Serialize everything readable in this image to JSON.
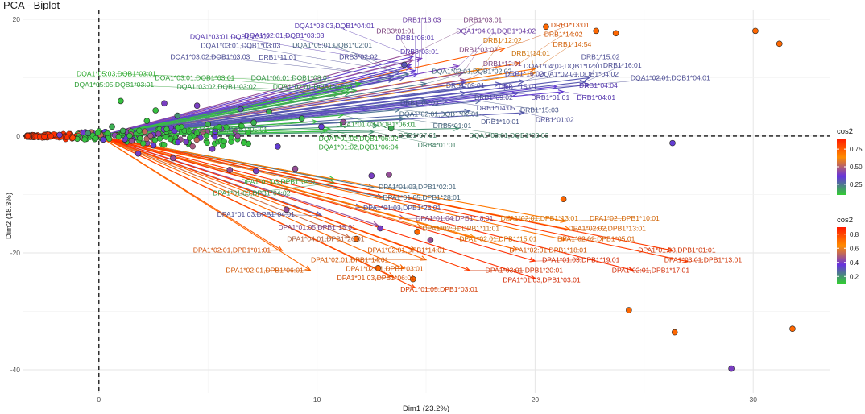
{
  "chart_data": {
    "type": "scatter",
    "title": "PCA - Biplot",
    "xlabel": "Dim1 (23.2%)",
    "ylabel": "Dim2 (18.3%)",
    "xlim": [
      -3.5,
      33.5
    ],
    "ylim": [
      -44,
      21.5
    ],
    "xticks": [
      0,
      10,
      20,
      30
    ],
    "yticks": [
      20,
      0,
      -20,
      -40
    ],
    "reference_lines": {
      "x": 0,
      "y": 0,
      "style": "dashed"
    },
    "legends": [
      {
        "title": "cos2",
        "kind": "gradient",
        "colors": [
          "#32CD32",
          "#6633DD",
          "#FF8C00",
          "#FF1A00"
        ],
        "range": [
          0.1,
          0.9
        ],
        "ticks": [
          0.25,
          0.5,
          0.75
        ],
        "tick_labels": [
          "0.25",
          "0.50",
          "0.75"
        ],
        "applies_to": "DQ/DR variables"
      },
      {
        "title": "cos2",
        "kind": "gradient",
        "colors": [
          "#32CD32",
          "#6633DD",
          "#FF8C00",
          "#FF1A00"
        ],
        "range": [
          0.1,
          0.9
        ],
        "ticks": [
          0.2,
          0.4,
          0.6,
          0.8
        ],
        "tick_labels": [
          "0.2",
          "0.4",
          "0.6",
          "0.8"
        ],
        "applies_to": "DP variables"
      }
    ],
    "variables": [
      {
        "label": "DRB1*13:03",
        "x": 14.8,
        "y": 13.3,
        "cos2": 0.4,
        "tx": 14.8,
        "ty": 19.9
      },
      {
        "label": "DRB1*03:01",
        "x": 14.5,
        "y": 14.3,
        "cos2": 0.45,
        "tx": 17.6,
        "ty": 19.9
      },
      {
        "label": "DRB1*13:01",
        "x": 18.6,
        "y": 15.0,
        "cos2": 0.75,
        "tx": 21.6,
        "ty": 19.0
      },
      {
        "label": "DQA1*03:03,DQB1*04:01",
        "x": 14.4,
        "y": 13.6,
        "cos2": 0.35,
        "tx": 10.8,
        "ty": 18.9
      },
      {
        "label": "DRB3*01:01",
        "x": 14.4,
        "y": 13.0,
        "cos2": 0.45,
        "tx": 13.6,
        "ty": 18.0
      },
      {
        "label": "DQA1*04:01,DQB1*04:02",
        "x": 16.5,
        "y": 12.0,
        "cos2": 0.4,
        "tx": 18.2,
        "ty": 18.0
      },
      {
        "label": "DRB1*14:02",
        "x": 19.3,
        "y": 12.5,
        "cos2": 0.72,
        "tx": 21.3,
        "ty": 17.4
      },
      {
        "label": "DQA1*03:01,DQB1*03:02",
        "x": 14.3,
        "y": 12.2,
        "cos2": 0.35,
        "tx": 6.0,
        "ty": 17.0
      },
      {
        "label": "DQA1*02:01,DQB1*03:03",
        "x": 14.3,
        "y": 11.8,
        "cos2": 0.35,
        "tx": 8.5,
        "ty": 17.2
      },
      {
        "label": "DRB1*08:01",
        "x": 14.5,
        "y": 11.2,
        "cos2": 0.35,
        "tx": 14.5,
        "ty": 16.8
      },
      {
        "label": "DRB1*12:02",
        "x": 17.5,
        "y": 11.4,
        "cos2": 0.65,
        "tx": 18.5,
        "ty": 16.4
      },
      {
        "label": "DRB1*14:54",
        "x": 20.0,
        "y": 11.5,
        "cos2": 0.7,
        "tx": 21.7,
        "ty": 15.7
      },
      {
        "label": "DQA1*03:01,DQB1*03:03",
        "x": 13.8,
        "y": 11.0,
        "cos2": 0.3,
        "tx": 6.5,
        "ty": 15.5
      },
      {
        "label": "DQA1*05:01,DQB1*02:01",
        "x": 14.2,
        "y": 10.6,
        "cos2": 0.25,
        "tx": 10.7,
        "ty": 15.6
      },
      {
        "label": "DRB3*03:01",
        "x": 14.6,
        "y": 10.6,
        "cos2": 0.35,
        "tx": 14.7,
        "ty": 14.5
      },
      {
        "label": "DRB1*03:02",
        "x": 16.7,
        "y": 10.8,
        "cos2": 0.45,
        "tx": 17.4,
        "ty": 14.8
      },
      {
        "label": "DQA1*03:02,DQB1*03:03",
        "x": 13.5,
        "y": 10.3,
        "cos2": 0.3,
        "tx": 5.1,
        "ty": 13.6
      },
      {
        "label": "DRB1*11:01",
        "x": 13.5,
        "y": 9.7,
        "cos2": 0.3,
        "tx": 8.2,
        "ty": 13.5
      },
      {
        "label": "DRB3*02:02",
        "x": 14.0,
        "y": 10.0,
        "cos2": 0.3,
        "tx": 11.9,
        "ty": 13.6
      },
      {
        "label": "DRB1*14:01",
        "x": 20.0,
        "y": 10.8,
        "cos2": 0.62,
        "tx": 19.8,
        "ty": 14.2
      },
      {
        "label": "DRB1*15:02",
        "x": 22.5,
        "y": 10.0,
        "cos2": 0.3,
        "tx": 23.0,
        "ty": 13.6
      },
      {
        "label": "DQA1*05:03,DQB1*03:01",
        "x": 12.0,
        "y": 9.0,
        "cos2": 0.1,
        "tx": 0.8,
        "ty": 10.7
      },
      {
        "label": "DRB1*12:01",
        "x": 16.8,
        "y": 9.6,
        "cos2": 0.45,
        "tx": 18.5,
        "ty": 12.4
      },
      {
        "label": "DQA1*04:01,DQB1*02:01",
        "x": 19.5,
        "y": 9.4,
        "cos2": 0.3,
        "tx": 21.3,
        "ty": 12.0
      },
      {
        "label": "DRB1*16:01",
        "x": 22.3,
        "y": 9.3,
        "cos2": 0.3,
        "tx": 24.0,
        "ty": 12.1
      },
      {
        "label": "DQA1*02:01,DQB1*02:02",
        "x": 15.0,
        "y": 9.0,
        "cos2": 0.25,
        "tx": 17.1,
        "ty": 11.1
      },
      {
        "label": "DRB1*16:02",
        "x": 16.8,
        "y": 9.2,
        "cos2": 0.32,
        "tx": 19.5,
        "ty": 10.7
      },
      {
        "label": "DQA1*02:01,DQB1*04:02",
        "x": 18.4,
        "y": 9.0,
        "cos2": 0.3,
        "tx": 22.0,
        "ty": 10.6
      },
      {
        "label": "DQA1*02:01,DQB1*04:01",
        "x": 22.5,
        "y": 8.8,
        "cos2": 0.3,
        "tx": 26.2,
        "ty": 10.0
      },
      {
        "label": "DQA1*03:01,DQB1*03:01",
        "x": 11.5,
        "y": 8.0,
        "cos2": 0.12,
        "tx": 4.4,
        "ty": 10.0
      },
      {
        "label": "DQA1*06:01,DQB1*03:01",
        "x": 11.8,
        "y": 7.8,
        "cos2": 0.15,
        "tx": 8.8,
        "ty": 10.0
      },
      {
        "label": "DQA1*05:05,DQB1*03:01",
        "x": 11.0,
        "y": 7.3,
        "cos2": 0.12,
        "tx": 0.7,
        "ty": 8.8
      },
      {
        "label": "DQA1*03:02,DQB1*03:02",
        "x": 11.3,
        "y": 7.5,
        "cos2": 0.15,
        "tx": 5.4,
        "ty": 8.5
      },
      {
        "label": "DQA1*02:01,DQB1*02:03",
        "x": 11.5,
        "y": 7.4,
        "cos2": 0.15,
        "tx": 9.8,
        "ty": 8.5
      },
      {
        "label": "DRB1*09:01",
        "x": 16.8,
        "y": 8.4,
        "cos2": 0.3,
        "tx": 16.8,
        "ty": 8.7
      },
      {
        "label": "DRB1*15:01",
        "x": 18.8,
        "y": 8.4,
        "cos2": 0.32,
        "tx": 19.2,
        "ty": 8.5
      },
      {
        "label": "DRB1*04:04",
        "x": 21.0,
        "y": 8.5,
        "cos2": 0.35,
        "tx": 22.9,
        "ty": 8.7
      },
      {
        "label": "DRB1*09:02",
        "x": 16.8,
        "y": 7.4,
        "cos2": 0.3,
        "tx": 18.1,
        "ty": 6.6
      },
      {
        "label": "DRB1*01:01",
        "x": 19.2,
        "y": 7.3,
        "cos2": 0.33,
        "tx": 20.7,
        "ty": 6.6
      },
      {
        "label": "DRB1*04:01",
        "x": 21.3,
        "y": 7.6,
        "cos2": 0.35,
        "tx": 22.8,
        "ty": 6.6
      },
      {
        "label": "DRB1*04:03",
        "x": 15.0,
        "y": 6.2,
        "cos2": 0.28,
        "tx": 14.7,
        "ty": 5.7
      },
      {
        "label": "DRB1*04:05",
        "x": 16.0,
        "y": 6.0,
        "cos2": 0.3,
        "tx": 18.2,
        "ty": 4.8
      },
      {
        "label": "DRB1*15:03",
        "x": 17.5,
        "y": 6.0,
        "cos2": 0.28,
        "tx": 20.2,
        "ty": 4.5
      },
      {
        "label": "DQA1*02:01,DQB1*02:01",
        "x": 13.8,
        "y": 4.5,
        "cos2": 0.25,
        "tx": 15.6,
        "ty": 3.8
      },
      {
        "label": "DRB1*10:01",
        "x": 17.0,
        "y": 4.3,
        "cos2": 0.28,
        "tx": 18.4,
        "ty": 2.5
      },
      {
        "label": "DRB1*01:02",
        "x": 19.5,
        "y": 4.0,
        "cos2": 0.3,
        "tx": 20.9,
        "ty": 2.8
      },
      {
        "label": "DQA1*01:03,DQB1*06:01",
        "x": 11.2,
        "y": 3.6,
        "cos2": 0.14,
        "tx": 12.7,
        "ty": 2.0
      },
      {
        "label": "DRB5*01:01",
        "x": 14.0,
        "y": 3.0,
        "cos2": 0.25,
        "tx": 16.2,
        "ty": 1.8
      },
      {
        "label": "DQA1*01:01,DQB1*05:01",
        "x": 10.0,
        "y": 2.5,
        "cos2": 0.12,
        "tx": 5.9,
        "ty": 1.1
      },
      {
        "label": "DQA1*03:01,DQB1*03:03",
        "x": 16.5,
        "y": 1.3,
        "cos2": 0.2,
        "tx": 18.8,
        "ty": 0.1
      },
      {
        "label": "DRB1*07:01",
        "x": 12.8,
        "y": 1.8,
        "cos2": 0.2,
        "tx": 14.6,
        "ty": 0.1
      },
      {
        "label": "DQA1*01:02,DQB1*06:02",
        "x": 10.6,
        "y": 1.2,
        "cos2": 0.12,
        "tx": 11.9,
        "ty": -0.4
      },
      {
        "label": "DQA1*01:02,DQB1*06:04",
        "x": 10.4,
        "y": 0.8,
        "cos2": 0.12,
        "tx": 11.9,
        "ty": -1.9
      },
      {
        "label": "DRB4*01:01",
        "x": 12.6,
        "y": 0.7,
        "cos2": 0.2,
        "tx": 15.5,
        "ty": -1.5
      },
      {
        "label": "DPA1*01:03,DPB1*04:01",
        "x": 10.8,
        "y": -7.4,
        "cos2": 0.12,
        "tx": 8.3,
        "ty": -7.8
      },
      {
        "label": "DPA1*01:03,DPB1*04:02",
        "x": 10.8,
        "y": -8.0,
        "cos2": 0.15,
        "tx": 7.0,
        "ty": -9.7
      },
      {
        "label": "DPA1*01:03,DPB1*02:01",
        "x": 12.6,
        "y": -8.8,
        "cos2": 0.25,
        "tx": 14.6,
        "ty": -8.7
      },
      {
        "label": "DPA1*01:05,DPB1*28:01",
        "x": 13.0,
        "y": -10.5,
        "cos2": 0.25,
        "tx": 14.8,
        "ty": -10.5
      },
      {
        "label": "DPA1*01:03,DPB1*28:01",
        "x": 12.0,
        "y": -12.2,
        "cos2": 0.3,
        "tx": 13.9,
        "ty": -12.3
      },
      {
        "label": "DPA1*01:03,DPB1*04:01",
        "x": 10.2,
        "y": -13.6,
        "cos2": 0.3,
        "tx": 7.2,
        "ty": -13.4
      },
      {
        "label": "DPA1*01:04,DPB1*18:01",
        "x": 14.0,
        "y": -14.1,
        "cos2": 0.45,
        "tx": 16.3,
        "ty": -14.1
      },
      {
        "label": "DPA1*02:01,DPB1*13:01",
        "x": 19.0,
        "y": -14.2,
        "cos2": 0.65,
        "tx": 20.2,
        "ty": -14.1
      },
      {
        "label": "DPA1*02 ,DPB1*10:01",
        "x": 21.4,
        "y": -14.6,
        "cos2": 0.68,
        "tx": 24.1,
        "ty": -14.1
      },
      {
        "label": "DPA1*01:05,DPB1*15:01",
        "x": 12.8,
        "y": -15.3,
        "cos2": 0.45,
        "tx": 10.0,
        "ty": -15.6
      },
      {
        "label": "DPA1*02:01,DPB1*11:01",
        "x": 14.8,
        "y": -15.6,
        "cos2": 0.6,
        "tx": 16.6,
        "ty": -15.8
      },
      {
        "label": "DPA1*02:02,DPB1*13:01",
        "x": 21.6,
        "y": -16.0,
        "cos2": 0.7,
        "tx": 23.3,
        "ty": -15.8
      },
      {
        "label": "DPA1*04:01,DPB1*26:01",
        "x": 11.5,
        "y": -17.4,
        "cos2": 0.55,
        "tx": 10.4,
        "ty": -17.6
      },
      {
        "label": "DPA1*02:01,DPB1*15:01",
        "x": 17.2,
        "y": -17.3,
        "cos2": 0.65,
        "tx": 18.3,
        "ty": -17.6
      },
      {
        "label": "DPA1*02:02,DPB1*05:01",
        "x": 21.4,
        "y": -17.8,
        "cos2": 0.7,
        "tx": 22.8,
        "ty": -17.6
      },
      {
        "label": "DPA1*02:01,DPB1*01:01",
        "x": 8.4,
        "y": -19.6,
        "cos2": 0.75,
        "tx": 6.1,
        "ty": -19.5
      },
      {
        "label": "DPA1*02:01,DPB1*14:01",
        "x": 14.5,
        "y": -19.5,
        "cos2": 0.72,
        "tx": 14.1,
        "ty": -19.5
      },
      {
        "label": "DPA1*02:01,DPB1*18:01",
        "x": 19.2,
        "y": -19.5,
        "cos2": 0.72,
        "tx": 20.6,
        "ty": -19.5
      },
      {
        "label": "DPA1*01:03,DPB1*01:01",
        "x": 26.3,
        "y": -19.6,
        "cos2": 0.82,
        "tx": 26.5,
        "ty": -19.5
      },
      {
        "label": "DPA1*02:01,DPB1*14:01",
        "x": 15.0,
        "y": -21.2,
        "cos2": 0.72,
        "tx": 11.5,
        "ty": -21.2
      },
      {
        "label": "DPA1*01:03,DPB1*19:01",
        "x": 20.0,
        "y": -21.4,
        "cos2": 0.85,
        "tx": 22.1,
        "ty": -21.2
      },
      {
        "label": "DPA1*03:01,DPB1*13:01",
        "x": 27.0,
        "y": -21.5,
        "cos2": 0.82,
        "tx": 27.7,
        "ty": -21.2
      },
      {
        "label": "DPA1*02:01,DPB1*06:01",
        "x": 9.7,
        "y": -23.0,
        "cos2": 0.72,
        "tx": 7.6,
        "ty": -23.0
      },
      {
        "label": "DPA1*02:01,DPB1*03:01",
        "x": 14.0,
        "y": -22.7,
        "cos2": 0.72,
        "tx": 13.1,
        "ty": -22.7
      },
      {
        "label": "DPA1*03:01,DPB1*20:01",
        "x": 17.0,
        "y": -23.0,
        "cos2": 0.82,
        "tx": 19.5,
        "ty": -23.0
      },
      {
        "label": "DPA1*02:01,DPB1*17:01",
        "x": 24.5,
        "y": -23.0,
        "cos2": 0.85,
        "tx": 25.3,
        "ty": -23.0
      },
      {
        "label": "DPA1*01:03,DPB1*06:01",
        "x": 13.5,
        "y": -24.1,
        "cos2": 0.75,
        "tx": 12.7,
        "ty": -24.3
      },
      {
        "label": "DPA1*01:03,DPB1*03:01",
        "x": 20.0,
        "y": -24.4,
        "cos2": 0.85,
        "tx": 20.3,
        "ty": -24.6
      },
      {
        "label": "DPA1*01:05,DPB1*03:01",
        "x": 14.5,
        "y": -26.0,
        "cos2": 0.8,
        "tx": 15.6,
        "ty": -26.2
      }
    ],
    "individuals": [
      {
        "x": 20.5,
        "y": 18.7,
        "cos2": 0.72
      },
      {
        "x": 22.8,
        "y": 18.0,
        "cos2": 0.72
      },
      {
        "x": 23.7,
        "y": 17.6,
        "cos2": 0.72
      },
      {
        "x": 30.1,
        "y": 18.0,
        "cos2": 0.72
      },
      {
        "x": 31.2,
        "y": 15.8,
        "cos2": 0.72
      },
      {
        "x": 14.0,
        "y": 12.2,
        "cos2": 0.3
      },
      {
        "x": 26.3,
        "y": -1.2,
        "cos2": 0.35
      },
      {
        "x": 21.3,
        "y": -10.8,
        "cos2": 0.72
      },
      {
        "x": 12.5,
        "y": -6.8,
        "cos2": 0.4
      },
      {
        "x": 7.2,
        "y": -6.0,
        "cos2": 0.4
      },
      {
        "x": 9.0,
        "y": -5.6,
        "cos2": 0.45
      },
      {
        "x": 8.6,
        "y": -12.6,
        "cos2": 0.45
      },
      {
        "x": 11.8,
        "y": -17.6,
        "cos2": 0.72
      },
      {
        "x": 12.9,
        "y": -15.8,
        "cos2": 0.4
      },
      {
        "x": 14.6,
        "y": -16.4,
        "cos2": 0.72
      },
      {
        "x": 15.2,
        "y": -17.8,
        "cos2": 0.45
      },
      {
        "x": 14.4,
        "y": -24.5,
        "cos2": 0.72
      },
      {
        "x": 12.8,
        "y": -22.6,
        "cos2": 0.72
      },
      {
        "x": 24.3,
        "y": -29.8,
        "cos2": 0.72
      },
      {
        "x": 26.4,
        "y": -33.6,
        "cos2": 0.72
      },
      {
        "x": 31.8,
        "y": -33.0,
        "cos2": 0.72
      },
      {
        "x": 29.0,
        "y": -39.8,
        "cos2": 0.4
      },
      {
        "x": 13.3,
        "y": -6.6,
        "cos2": 0.45
      },
      {
        "x": 5.2,
        "y": -2.2,
        "cos2": 0.4
      },
      {
        "x": 3.4,
        "y": -3.8,
        "cos2": 0.45
      },
      {
        "x": 6.0,
        "y": -5.8,
        "cos2": 0.45
      },
      {
        "x": 1.8,
        "y": -3.0,
        "cos2": 0.4
      },
      {
        "x": 2.5,
        "y": -1.6,
        "cos2": 0.35
      },
      {
        "x": 4.0,
        "y": -1.0,
        "cos2": 0.4
      },
      {
        "x": 0.6,
        "y": 1.6,
        "cos2": 0.15
      },
      {
        "x": 2.2,
        "y": 2.6,
        "cos2": 0.12
      },
      {
        "x": 3.6,
        "y": 3.5,
        "cos2": 0.2
      },
      {
        "x": 5.0,
        "y": 2.0,
        "cos2": 0.15
      },
      {
        "x": 7.1,
        "y": 2.3,
        "cos2": 0.15
      },
      {
        "x": 7.8,
        "y": 4.2,
        "cos2": 0.15
      },
      {
        "x": 6.5,
        "y": 4.6,
        "cos2": 0.3
      },
      {
        "x": 10.2,
        "y": 1.6,
        "cos2": 0.35
      },
      {
        "x": 11.2,
        "y": 2.4,
        "cos2": 0.45
      },
      {
        "x": 4.5,
        "y": 5.2,
        "cos2": 0.4
      },
      {
        "x": 3.0,
        "y": 5.6,
        "cos2": 0.4
      },
      {
        "x": 1.1,
        "y": 0.9,
        "cos2": 0.15
      },
      {
        "x": 0.2,
        "y": -0.6,
        "cos2": 0.35
      },
      {
        "x": -1.2,
        "y": -0.3,
        "cos2": 0.8
      },
      {
        "x": -2.5,
        "y": -0.1,
        "cos2": 0.85
      },
      {
        "x": -1.8,
        "y": 0.2,
        "cos2": 0.4
      },
      {
        "x": -0.5,
        "y": 0.5,
        "cos2": 0.2
      },
      {
        "x": 1.5,
        "y": -0.8,
        "cos2": 0.45
      },
      {
        "x": 8.2,
        "y": -1.8,
        "cos2": 0.35
      },
      {
        "x": 13.4,
        "y": 1.3,
        "cos2": 0.15
      },
      {
        "x": 9.3,
        "y": 3.0,
        "cos2": 0.15
      },
      {
        "x": 1.0,
        "y": 6.0,
        "cos2": 0.12
      },
      {
        "x": 2.6,
        "y": 4.4,
        "cos2": 0.12
      }
    ]
  }
}
